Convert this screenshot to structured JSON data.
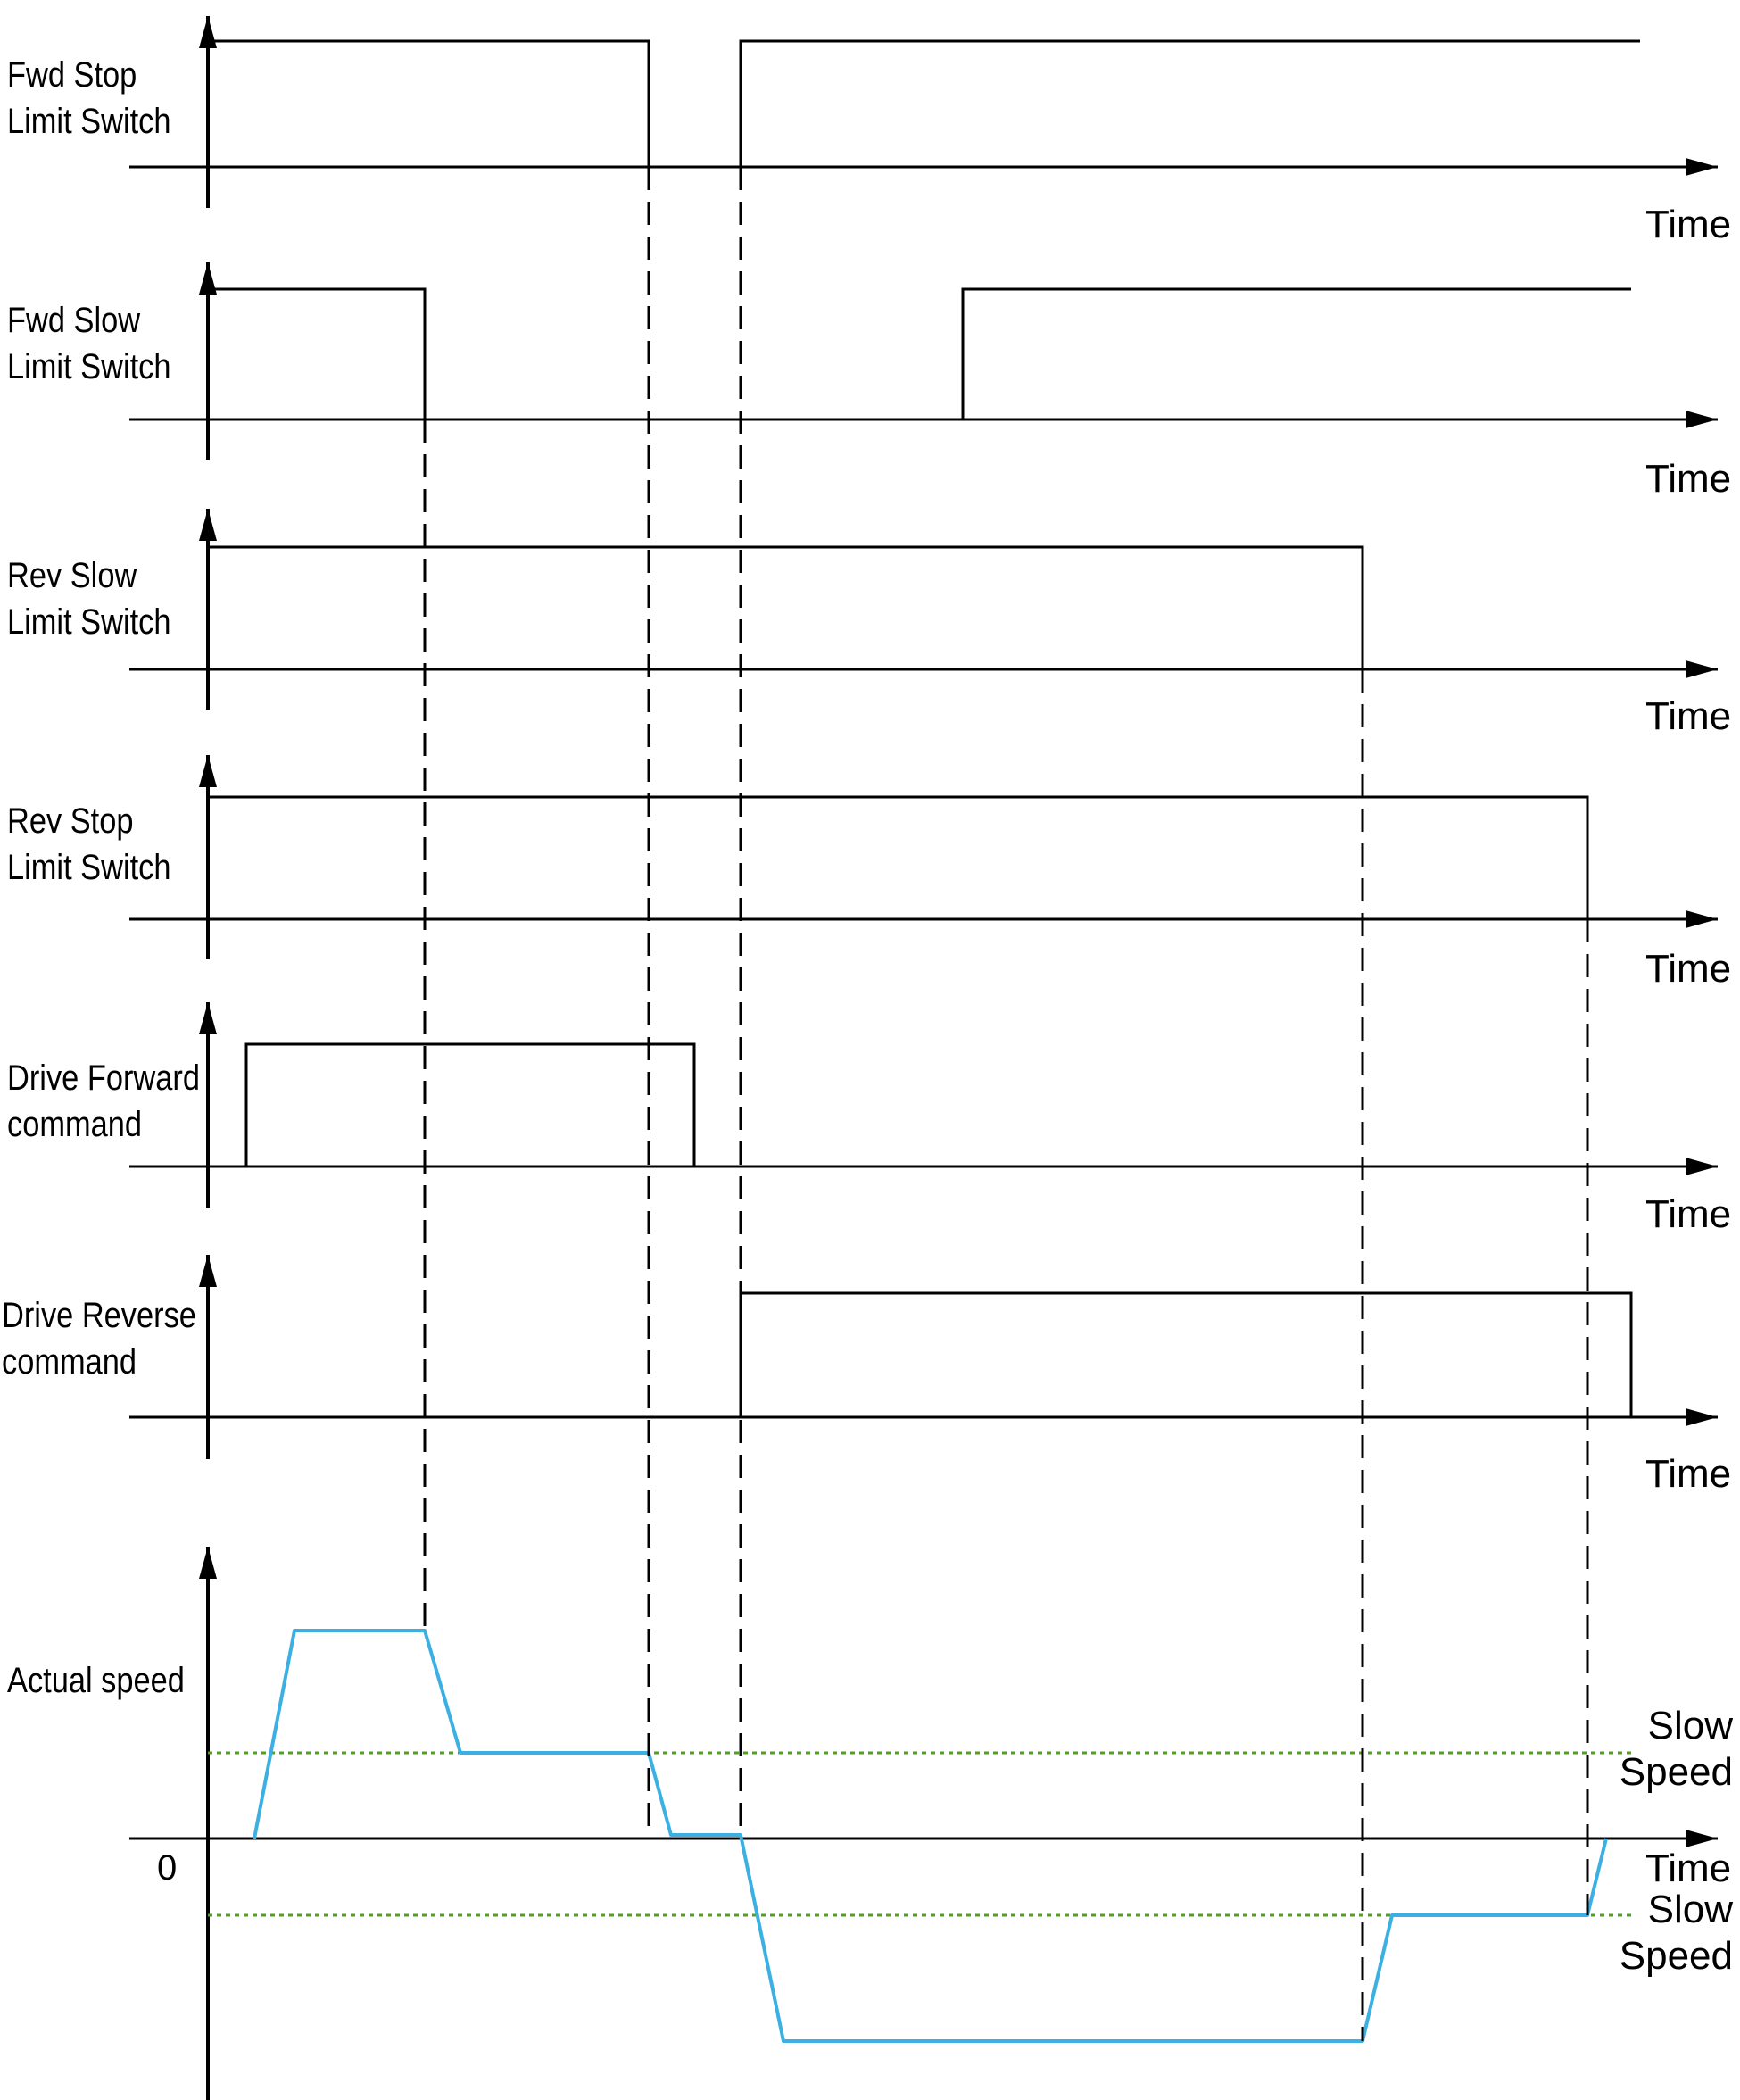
{
  "x_axis_label": "Time",
  "channels": [
    {
      "label_lines": [
        "Fwd Stop",
        "Limit Switch"
      ],
      "kind": "digital",
      "edges": [
        0,
        1
      ]
    },
    {
      "label_lines": [
        "Fwd Slow",
        "Limit Switch"
      ],
      "kind": "digital",
      "edges": [
        2,
        3
      ]
    },
    {
      "label_lines": [
        "Rev Slow",
        "Limit Switch"
      ],
      "kind": "digital",
      "edges": [
        4
      ]
    },
    {
      "label_lines": [
        "Rev Stop",
        "Limit Switch"
      ],
      "kind": "digital",
      "edges": [
        5
      ]
    },
    {
      "label_lines": [
        "Drive Forward",
        "command"
      ],
      "kind": "digital",
      "edges": [
        6,
        7
      ]
    },
    {
      "label_lines": [
        "Drive Reverse",
        "command"
      ],
      "kind": "digital",
      "edges": [
        8,
        9
      ]
    },
    {
      "label_lines": [
        "Actual speed"
      ],
      "kind": "analog"
    }
  ],
  "speed_axis": {
    "zero_label": "0",
    "upper_reference": [
      "Slow",
      "Speed"
    ],
    "lower_reference": [
      "Slow",
      "Speed"
    ]
  },
  "colors": {
    "signal": "#000000",
    "speed_trace": "#3cb0e2",
    "slow_speed_reference": "#4aa518"
  }
}
